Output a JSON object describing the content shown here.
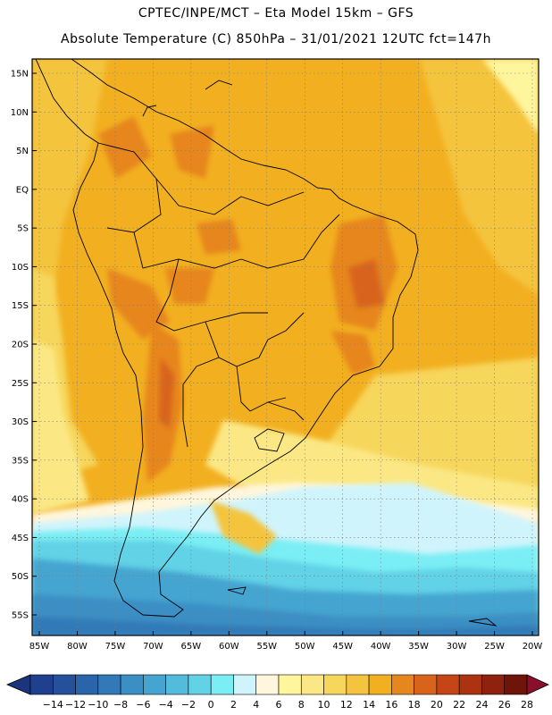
{
  "header": {
    "line1": "CPTEC/INPE/MCT –  Eta Model 15km – GFS",
    "line2": "Absolute Temperature (C) 850hPa – 31/01/2021 12UTC fct=147h"
  },
  "map": {
    "lat_labels": [
      "15N",
      "10N",
      "5N",
      "EQ",
      "5S",
      "10S",
      "15S",
      "20S",
      "25S",
      "30S",
      "35S",
      "40S",
      "45S",
      "50S",
      "55S"
    ],
    "lon_labels": [
      "85W",
      "80W",
      "75W",
      "70W",
      "65W",
      "60W",
      "55W",
      "50W",
      "45W",
      "40W",
      "35W",
      "30W",
      "25W",
      "20W"
    ],
    "coastline_color": "#000000",
    "grid": "dotted"
  },
  "colorbar": {
    "labels": [
      "−14",
      "−12",
      "−10",
      "−8",
      "−6",
      "−4",
      "−2",
      "0",
      "2",
      "4",
      "6",
      "8",
      "10",
      "12",
      "14",
      "16",
      "18",
      "20",
      "22",
      "24",
      "26",
      "28"
    ],
    "colors": [
      "#1f3f8f",
      "#24509c",
      "#2a64ab",
      "#3379b7",
      "#3b8fc4",
      "#45a5d0",
      "#53bbdc",
      "#62d2e6",
      "#7aeef4",
      "#d0f4fb",
      "#fff6dc",
      "#fff59c",
      "#fbe884",
      "#f7d65c",
      "#f4c43e",
      "#f2b020",
      "#e6861e",
      "#d8631a",
      "#c54516",
      "#ad3212",
      "#8e220e",
      "#6e1408"
    ]
  }
}
